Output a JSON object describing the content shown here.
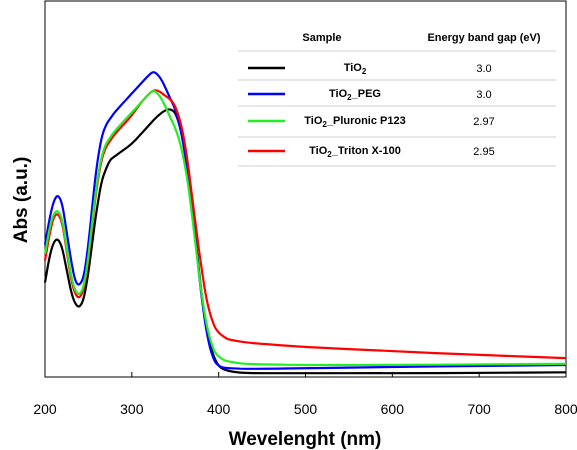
{
  "chart_data": {
    "type": "line",
    "title": "",
    "xlabel": "Wevelenght (nm)",
    "ylabel": "Abs (a.u.)",
    "xlim": [
      200,
      800
    ],
    "ylim": [
      0,
      1
    ],
    "x_ticks": [
      "200",
      "300",
      "400",
      "500",
      "600",
      "700",
      "800"
    ],
    "grid": false,
    "legend_position": "top-right",
    "legend_table": {
      "header_sample": "Sample",
      "header_gap": "Energy band gap (eV)",
      "rows": [
        {
          "base": "TiO",
          "sub": "2",
          "suffix": "",
          "gap": "3.0"
        },
        {
          "base": "TiO",
          "sub": "2",
          "suffix": "_PEG",
          "gap": "3.0"
        },
        {
          "base": "TiO",
          "sub": "2",
          "suffix": "_Pluronic P123",
          "gap": "2.97"
        },
        {
          "base": "TiO",
          "sub": "2",
          "suffix": "_Triton X-100",
          "gap": "2.95"
        }
      ]
    },
    "series": [
      {
        "name": "TiO2",
        "color": "#000000",
        "x": [
          200,
          205,
          210,
          215,
          220,
          225,
          230,
          235,
          240,
          245,
          250,
          255,
          260,
          265,
          270,
          275,
          280,
          290,
          300,
          310,
          320,
          330,
          340,
          345,
          350,
          355,
          360,
          365,
          370,
          375,
          380,
          385,
          390,
          395,
          400,
          405,
          410,
          420,
          430,
          450,
          500,
          600,
          700,
          800
        ],
        "y": [
          0.3,
          0.38,
          0.43,
          0.44,
          0.41,
          0.34,
          0.27,
          0.23,
          0.22,
          0.25,
          0.33,
          0.44,
          0.54,
          0.62,
          0.66,
          0.69,
          0.7,
          0.72,
          0.74,
          0.77,
          0.8,
          0.83,
          0.85,
          0.85,
          0.84,
          0.8,
          0.74,
          0.65,
          0.53,
          0.4,
          0.27,
          0.17,
          0.1,
          0.06,
          0.035,
          0.025,
          0.02,
          0.015,
          0.013,
          0.012,
          0.012,
          0.012,
          0.013,
          0.015
        ]
      },
      {
        "name": "TiO2_PEG",
        "color": "#0000ff",
        "x": [
          200,
          205,
          210,
          215,
          220,
          225,
          230,
          235,
          240,
          245,
          250,
          255,
          260,
          265,
          270,
          275,
          280,
          290,
          300,
          310,
          320,
          325,
          330,
          335,
          340,
          345,
          350,
          355,
          360,
          365,
          370,
          375,
          380,
          385,
          390,
          395,
          400,
          405,
          410,
          420,
          430,
          450,
          500,
          600,
          700,
          800
        ],
        "y": [
          0.42,
          0.5,
          0.56,
          0.58,
          0.55,
          0.46,
          0.37,
          0.3,
          0.29,
          0.32,
          0.42,
          0.56,
          0.68,
          0.76,
          0.8,
          0.82,
          0.84,
          0.87,
          0.9,
          0.93,
          0.96,
          0.97,
          0.96,
          0.94,
          0.91,
          0.88,
          0.85,
          0.8,
          0.73,
          0.64,
          0.52,
          0.39,
          0.26,
          0.16,
          0.09,
          0.05,
          0.035,
          0.03,
          0.028,
          0.027,
          0.026,
          0.026,
          0.028,
          0.032,
          0.035,
          0.038
        ]
      },
      {
        "name": "TiO2_Pluronic P123",
        "color": "#22ee22",
        "x": [
          200,
          205,
          210,
          215,
          220,
          225,
          230,
          235,
          240,
          245,
          250,
          255,
          260,
          265,
          270,
          275,
          280,
          290,
          300,
          310,
          320,
          325,
          330,
          335,
          340,
          345,
          350,
          355,
          360,
          365,
          370,
          375,
          380,
          385,
          390,
          395,
          400,
          405,
          410,
          420,
          430,
          450,
          500,
          600,
          700,
          800
        ],
        "y": [
          0.39,
          0.47,
          0.52,
          0.53,
          0.5,
          0.41,
          0.32,
          0.27,
          0.26,
          0.29,
          0.38,
          0.51,
          0.62,
          0.7,
          0.74,
          0.76,
          0.78,
          0.81,
          0.84,
          0.87,
          0.9,
          0.91,
          0.9,
          0.88,
          0.85,
          0.82,
          0.79,
          0.75,
          0.69,
          0.61,
          0.5,
          0.38,
          0.27,
          0.18,
          0.12,
          0.08,
          0.065,
          0.055,
          0.05,
          0.045,
          0.042,
          0.04,
          0.038,
          0.038,
          0.04,
          0.042
        ]
      },
      {
        "name": "TiO2_Triton X-100",
        "color": "#ff0000",
        "x": [
          200,
          205,
          210,
          215,
          220,
          225,
          230,
          235,
          240,
          245,
          250,
          255,
          260,
          265,
          270,
          275,
          280,
          290,
          300,
          310,
          320,
          325,
          330,
          335,
          340,
          345,
          350,
          355,
          360,
          365,
          370,
          375,
          380,
          385,
          390,
          395,
          400,
          405,
          410,
          420,
          430,
          450,
          500,
          600,
          700,
          800
        ],
        "y": [
          0.37,
          0.45,
          0.51,
          0.52,
          0.49,
          0.4,
          0.31,
          0.26,
          0.25,
          0.28,
          0.37,
          0.5,
          0.61,
          0.69,
          0.73,
          0.75,
          0.77,
          0.8,
          0.83,
          0.87,
          0.9,
          0.91,
          0.91,
          0.9,
          0.89,
          0.88,
          0.86,
          0.82,
          0.76,
          0.67,
          0.56,
          0.45,
          0.35,
          0.26,
          0.2,
          0.16,
          0.14,
          0.13,
          0.12,
          0.115,
          0.11,
          0.105,
          0.095,
          0.082,
          0.07,
          0.06
        ]
      }
    ]
  }
}
